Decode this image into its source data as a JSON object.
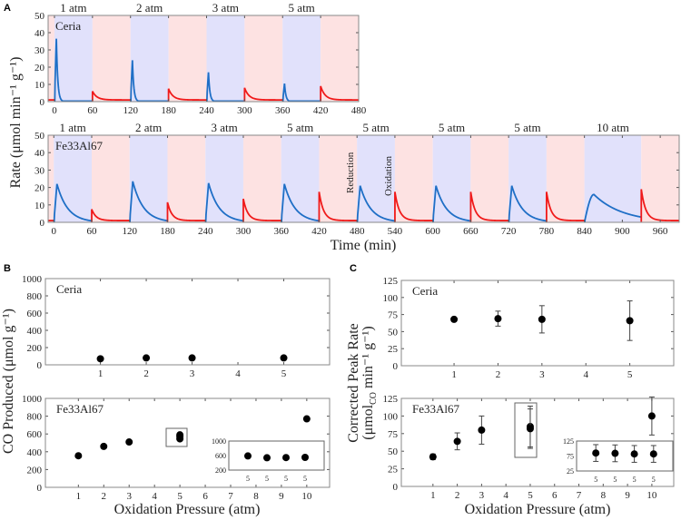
{
  "panel_labels": {
    "a": "A",
    "b": "B",
    "c": "C"
  },
  "colors": {
    "reduction_band": "#e1e1fb",
    "oxidation_band": "#fde2e2",
    "reduction_line": "#1f6fc6",
    "oxidation_line": "#f01a1a",
    "marker": "#000000",
    "axis": "#888888"
  },
  "chart_data": [
    {
      "id": "A-ceria",
      "type": "line",
      "ylabel": "Rate (μmol min⁻¹ g⁻¹)",
      "sample_label": "Ceria",
      "xlim": [
        -10,
        480
      ],
      "ylim": [
        0,
        50
      ],
      "xticks": [
        0,
        60,
        120,
        180,
        240,
        300,
        360,
        420,
        480
      ],
      "yticks": [
        0,
        10,
        20,
        30,
        40,
        50
      ],
      "cycles": [
        {
          "pressure": "1 atm",
          "reduction": [
            0,
            60
          ],
          "oxidation": [
            60,
            120
          ],
          "reduction_peak": 36.5,
          "oxidation_peak": 6
        },
        {
          "pressure": "2 atm",
          "reduction": [
            120,
            180
          ],
          "oxidation": [
            180,
            240
          ],
          "reduction_peak": 24,
          "oxidation_peak": 7.5
        },
        {
          "pressure": "3 atm",
          "reduction": [
            240,
            300
          ],
          "oxidation": [
            300,
            360
          ],
          "reduction_peak": 17,
          "oxidation_peak": 8
        },
        {
          "pressure": "5 atm",
          "reduction": [
            360,
            420
          ],
          "oxidation": [
            420,
            480
          ],
          "reduction_peak": 10.5,
          "oxidation_peak": 9
        }
      ]
    },
    {
      "id": "A-fe",
      "type": "line",
      "sample_label": "Fe33Al67",
      "xlabel": "Time (min)",
      "xlim": [
        -9,
        990
      ],
      "ylim": [
        0,
        50
      ],
      "xticks": [
        0,
        60,
        120,
        180,
        240,
        300,
        360,
        420,
        480,
        540,
        600,
        660,
        720,
        780,
        840,
        900,
        960
      ],
      "yticks": [
        0,
        10,
        20,
        30,
        40,
        50
      ],
      "annotations": [
        "Reduction",
        "Oxidation"
      ],
      "cycles": [
        {
          "pressure": "1 atm",
          "reduction": [
            0,
            60
          ],
          "oxidation": [
            60,
            120
          ],
          "reduction_peak": 22,
          "oxidation_peak": 7.5
        },
        {
          "pressure": "2 atm",
          "reduction": [
            120,
            180
          ],
          "oxidation": [
            180,
            240
          ],
          "reduction_peak": 23.5,
          "oxidation_peak": 11.5
        },
        {
          "pressure": "3 atm",
          "reduction": [
            240,
            300
          ],
          "oxidation": [
            300,
            360
          ],
          "reduction_peak": 22.5,
          "oxidation_peak": 13.5
        },
        {
          "pressure": "5 atm",
          "reduction": [
            360,
            420
          ],
          "oxidation": [
            420,
            480
          ],
          "reduction_peak": 22,
          "oxidation_peak": 17.5
        },
        {
          "pressure": "5 atm",
          "reduction": [
            480,
            540
          ],
          "oxidation": [
            540,
            600
          ],
          "reduction_peak": 21,
          "oxidation_peak": 17.5
        },
        {
          "pressure": "5 atm",
          "reduction": [
            600,
            660
          ],
          "oxidation": [
            660,
            720
          ],
          "reduction_peak": 21,
          "oxidation_peak": 17.5
        },
        {
          "pressure": "5 atm",
          "reduction": [
            720,
            780
          ],
          "oxidation": [
            780,
            840
          ],
          "reduction_peak": 21,
          "oxidation_peak": 17.5
        },
        {
          "pressure": "10 atm",
          "reduction": [
            840,
            930
          ],
          "oxidation": [
            930,
            990
          ],
          "reduction_peak": 16,
          "oxidation_peak": 19
        }
      ]
    },
    {
      "id": "B-ceria",
      "type": "scatter",
      "sample_label": "Ceria",
      "ylabel": "CO Produced (μmol g⁻¹)",
      "xlim": [
        -0.2,
        6
      ],
      "ylim": [
        0,
        1000
      ],
      "xticks": [
        1,
        2,
        3,
        4,
        5
      ],
      "yticks": [
        0,
        200,
        400,
        600,
        800,
        1000
      ],
      "points": [
        {
          "x": 1,
          "y": 70
        },
        {
          "x": 2,
          "y": 80
        },
        {
          "x": 3,
          "y": 80
        },
        {
          "x": 5,
          "y": 80
        }
      ]
    },
    {
      "id": "B-fe",
      "type": "scatter",
      "sample_label": "Fe33Al67",
      "xlabel": "Oxidation Pressure (atm)",
      "xlim": [
        -0.3,
        10.9
      ],
      "ylim": [
        0,
        1000
      ],
      "xticks": [
        1,
        2,
        3,
        4,
        5,
        6,
        7,
        8,
        9,
        10
      ],
      "yticks": [
        0,
        200,
        400,
        600,
        800,
        1000
      ],
      "points": [
        {
          "x": 1,
          "y": 355
        },
        {
          "x": 2,
          "y": 460
        },
        {
          "x": 3,
          "y": 510
        },
        {
          "x": 5,
          "y": 590
        },
        {
          "x": 5,
          "y": 570
        },
        {
          "x": 5,
          "y": 545
        },
        {
          "x": 10,
          "y": 770
        }
      ],
      "inset": {
        "xticklabels": [
          "5",
          "5",
          "5",
          "5"
        ],
        "ylim": [
          200,
          1000
        ],
        "yticks": [
          200,
          600,
          1000
        ],
        "values": [
          590,
          540,
          545,
          550
        ]
      }
    },
    {
      "id": "C-ceria",
      "type": "scatter",
      "sample_label": "Ceria",
      "ylabel": [
        "Corrected Peak Rate",
        "(μmol",
        "CO",
        " min⁻¹ g⁻¹)"
      ],
      "xlim": [
        -0.2,
        6
      ],
      "ylim": [
        0,
        125
      ],
      "xticks": [
        1,
        2,
        3,
        4,
        5
      ],
      "yticks": [
        0,
        25,
        50,
        75,
        100,
        125
      ],
      "points": [
        {
          "x": 1,
          "y": 68,
          "err": 2
        },
        {
          "x": 2,
          "y": 69,
          "err": 11
        },
        {
          "x": 3,
          "y": 68,
          "err": 20
        },
        {
          "x": 5,
          "y": 66,
          "err": 29
        }
      ]
    },
    {
      "id": "C-fe",
      "type": "scatter",
      "sample_label": "Fe33Al67",
      "xlabel": "Oxidation Pressure (atm)",
      "xlim": [
        -0.3,
        10.9
      ],
      "ylim": [
        0,
        125
      ],
      "xticks": [
        1,
        2,
        3,
        4,
        5,
        6,
        7,
        8,
        9,
        10
      ],
      "yticks": [
        0,
        25,
        50,
        75,
        100,
        125
      ],
      "points": [
        {
          "x": 1,
          "y": 42,
          "err": 4
        },
        {
          "x": 2,
          "y": 64,
          "err": 12
        },
        {
          "x": 3,
          "y": 80,
          "err": 20
        },
        {
          "x": 5,
          "y": 85,
          "err": 29
        },
        {
          "x": 5,
          "y": 82,
          "err": 28
        },
        {
          "x": 10,
          "y": 100,
          "err": 27
        }
      ],
      "inset": {
        "xticklabels": [
          "5",
          "5",
          "5",
          "5"
        ],
        "ylim": [
          25,
          125
        ],
        "yticks": [
          25,
          75,
          125
        ],
        "values": [
          85,
          84,
          82,
          82
        ],
        "errors": [
          28,
          28,
          28,
          28
        ]
      }
    }
  ]
}
